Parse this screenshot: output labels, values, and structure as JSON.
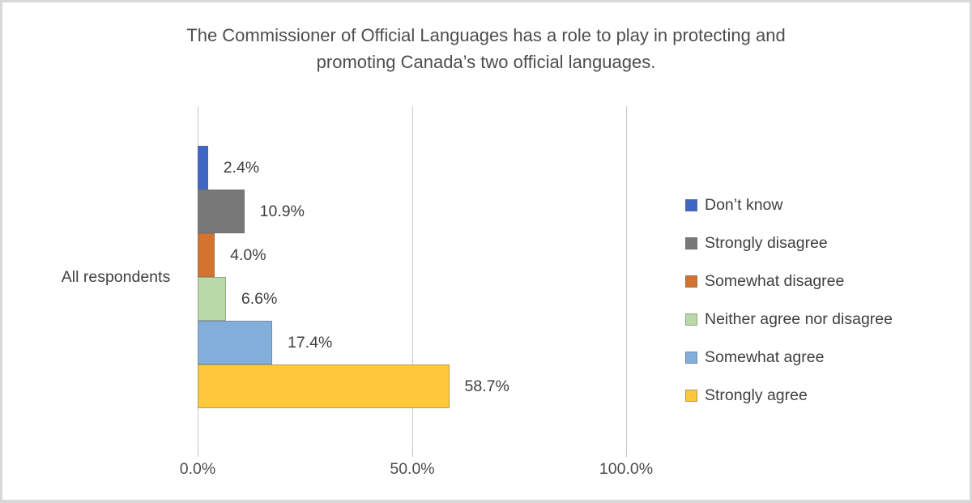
{
  "chart": {
    "title_line1": "The Commissioner of Official Languages has a role to play in protecting and",
    "title_line2": "promoting Canada’s two official languages.",
    "category_label": "All respondents"
  },
  "chart_data": {
    "type": "bar",
    "orientation": "horizontal",
    "title": "The Commissioner of Official Languages has a role to play in protecting and promoting Canada’s two official languages.",
    "categories": [
      "All respondents"
    ],
    "series": [
      {
        "name": "Don’t know",
        "values": [
          2.4
        ],
        "display_label": "2.4%",
        "color": "#3e66c5"
      },
      {
        "name": "Strongly disagree",
        "values": [
          10.9
        ],
        "display_label": "10.9%",
        "color": "#787878"
      },
      {
        "name": "Somewhat disagree",
        "values": [
          4.0
        ],
        "display_label": "4.0%",
        "color": "#d4732e"
      },
      {
        "name": "Neither agree nor disagree",
        "values": [
          6.6
        ],
        "display_label": "6.6%",
        "color": "#b9d9a6"
      },
      {
        "name": "Somewhat agree",
        "values": [
          17.4
        ],
        "display_label": "17.4%",
        "color": "#82aedc"
      },
      {
        "name": "Strongly agree",
        "values": [
          58.7
        ],
        "display_label": "58.7%",
        "color": "#ffc83a"
      }
    ],
    "xlim": [
      0,
      100
    ],
    "x_tick_values": [
      0,
      50,
      100
    ],
    "x_tick_labels": [
      "0.0%",
      "50.0%",
      "100.0%"
    ],
    "grid": true,
    "legend_position": "right",
    "data_labels": true
  }
}
